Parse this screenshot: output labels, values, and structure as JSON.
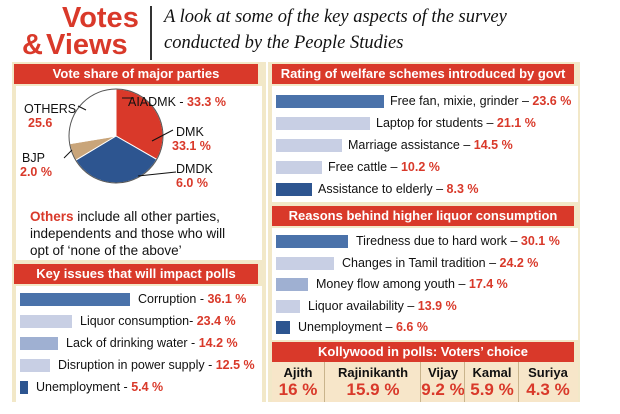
{
  "header": {
    "title_line1": "Votes",
    "title_amp": "&",
    "title_line2": "Views",
    "subtitle_line1": "A look at some of the key aspects of the survey",
    "subtitle_line2": "conducted by the People Studies"
  },
  "colors": {
    "accent": "#d9392a",
    "panel_bg": "#f2e8c8",
    "bar_dark": "#3e6aa0",
    "bar_light": "#c8cfe4",
    "kollywood_bg": "#f7e6c9"
  },
  "vote_share": {
    "title": "Vote share of major parties",
    "note_highlight": "Others",
    "note_line1": " include all other parties,",
    "note_line2": "independents and those who will",
    "note_line3": "opt of ‘none of the above’"
  },
  "key_issues": {
    "title": "Key issues that will impact polls"
  },
  "welfare": {
    "title": "Rating of welfare schemes introduced by govt"
  },
  "liquor": {
    "title": "Reasons behind higher liquor consumption"
  },
  "kollywood": {
    "title": "Kollywood in polls: Voters’ choice",
    "actors": [
      {
        "name": "Ajith",
        "value": "16 %"
      },
      {
        "name": "Rajinikanth",
        "value": "15.9 %"
      },
      {
        "name": "Vijay",
        "value": "9.2 %"
      },
      {
        "name": "Kamal",
        "value": "5.9 %"
      },
      {
        "name": "Suriya",
        "value": "4.3 %"
      }
    ]
  },
  "chart_data": [
    {
      "type": "pie",
      "title": "Vote share of major parties",
      "categories": [
        "AIADMK",
        "DMK",
        "DMDK",
        "BJP",
        "OTHERS"
      ],
      "values": [
        33.3,
        33.1,
        6.0,
        2.0,
        25.6
      ],
      "labels": [
        "AIADMK - 33.3 %",
        "DMK",
        "DMDK",
        "BJP",
        "OTHERS"
      ],
      "value_labels": [
        "",
        "33.1 %",
        "6.0 %",
        "2.0 %",
        "25.6"
      ]
    },
    {
      "type": "bar",
      "title": "Key issues that will impact polls",
      "categories": [
        "Corruption",
        "Liquor consumption",
        "Lack of drinking water",
        "Disruption in power supply",
        "Unemployment"
      ],
      "values": [
        36.1,
        23.4,
        14.2,
        12.5,
        5.4
      ],
      "labels": [
        "Corruption - ",
        "Liquor consumption- ",
        "Lack of drinking water - ",
        "Disruption in power supply - ",
        "Unemployment - "
      ],
      "value_labels": [
        "36.1 %",
        "23.4 %",
        "14.2 %",
        "12.5 %",
        "5.4 %"
      ]
    },
    {
      "type": "bar",
      "title": "Rating of welfare schemes introduced by govt",
      "categories": [
        "Free fan, mixie, grinder",
        "Laptop for students",
        "Marriage assistance",
        "Free cattle",
        "Assistance to elderly"
      ],
      "values": [
        23.6,
        21.1,
        14.5,
        10.2,
        8.3
      ],
      "labels": [
        "Free fan, mixie, grinder – ",
        "Laptop for students – ",
        "Marriage assistance – ",
        "Free cattle – ",
        "Assistance to elderly – "
      ],
      "value_labels": [
        "23.6 %",
        "21.1 %",
        "14.5 %",
        "10.2 %",
        "8.3 %"
      ]
    },
    {
      "type": "bar",
      "title": "Reasons behind higher liquor consumption",
      "categories": [
        "Tiredness due to hard work",
        "Changes in Tamil tradition",
        "Money flow among youth",
        "Liquor availability",
        "Unemployment"
      ],
      "values": [
        30.1,
        24.2,
        17.4,
        13.9,
        6.6
      ],
      "labels": [
        "Tiredness due to hard work – ",
        "Changes in Tamil tradition – ",
        "Money flow among youth – ",
        "Liquor availability – ",
        "Unemployment – "
      ],
      "value_labels": [
        "30.1 %",
        "24.2 %",
        "17.4 %",
        "13.9 %",
        "6.6 %"
      ]
    }
  ]
}
